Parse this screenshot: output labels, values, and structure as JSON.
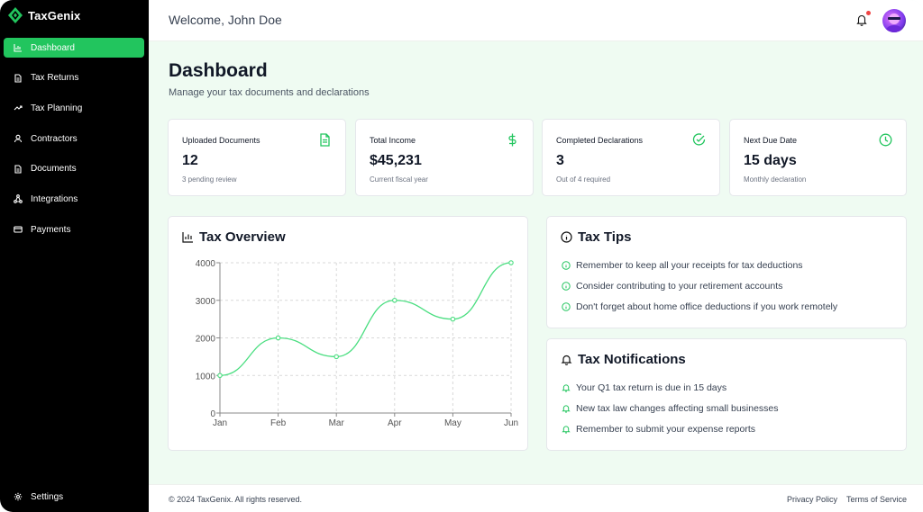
{
  "brand": {
    "name": "TaxGenix",
    "accent": "#22c55e"
  },
  "sidebar": {
    "items": [
      {
        "label": "Dashboard",
        "icon": "bar-chart-icon",
        "active": true
      },
      {
        "label": "Tax Returns",
        "icon": "document-icon"
      },
      {
        "label": "Tax Planning",
        "icon": "trending-up-icon"
      },
      {
        "label": "Contractors",
        "icon": "user-icon"
      },
      {
        "label": "Documents",
        "icon": "document-icon"
      },
      {
        "label": "Integrations",
        "icon": "network-icon"
      },
      {
        "label": "Payments",
        "icon": "credit-card-icon"
      }
    ],
    "settings": "Settings"
  },
  "header": {
    "welcome": "Welcome, John Doe"
  },
  "page": {
    "title": "Dashboard",
    "subtitle": "Manage your tax documents and declarations"
  },
  "stats": [
    {
      "label": "Uploaded Documents",
      "value": "12",
      "note": "3 pending review",
      "icon": "file-text-icon"
    },
    {
      "label": "Total Income",
      "value": "$45,231",
      "note": "Current fiscal year",
      "icon": "dollar-icon"
    },
    {
      "label": "Completed Declarations",
      "value": "3",
      "note": "Out of 4 required",
      "icon": "check-circle-icon"
    },
    {
      "label": "Next Due Date",
      "value": "15 days",
      "note": "Monthly declaration",
      "icon": "clock-icon"
    }
  ],
  "overview": {
    "title": "Tax Overview"
  },
  "chart_data": {
    "type": "line",
    "categories": [
      "Jan",
      "Feb",
      "Mar",
      "Apr",
      "May",
      "Jun"
    ],
    "values": [
      1000,
      2000,
      1500,
      3000,
      2500,
      4000
    ],
    "ylim": [
      0,
      4000
    ],
    "yticks": [
      "0",
      "1000",
      "2000",
      "3000",
      "4000"
    ],
    "grid": true,
    "color": "#4ade80"
  },
  "tips": {
    "title": "Tax Tips",
    "items": [
      "Remember to keep all your receipts for tax deductions",
      "Consider contributing to your retirement accounts",
      "Don't forget about home office deductions if you work remotely"
    ]
  },
  "notifications": {
    "title": "Tax Notifications",
    "items": [
      "Your Q1 tax return is due in 15 days",
      "New tax law changes affecting small businesses",
      "Remember to submit your expense reports"
    ]
  },
  "footer": {
    "copyright": "© 2024 TaxGenix. All rights reserved.",
    "privacy": "Privacy Policy",
    "terms": "Terms of Service"
  }
}
